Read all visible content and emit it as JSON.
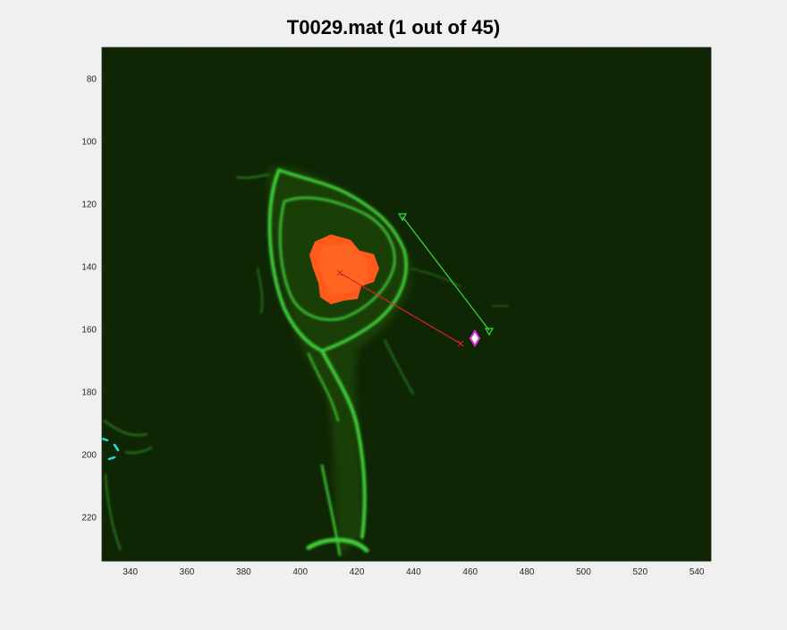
{
  "title": "T0029.mat (1 out of 45)",
  "x_axis": {
    "range": [
      330,
      545
    ],
    "ticks": [
      340,
      360,
      380,
      400,
      420,
      440,
      460,
      480,
      500,
      520,
      540
    ]
  },
  "y_axis": {
    "range": [
      70,
      234
    ],
    "reversed": true,
    "ticks": [
      80,
      100,
      120,
      140,
      160,
      180,
      200,
      220
    ]
  },
  "colors": {
    "background": "#0f2604",
    "cell_outline": "#3fcf3a",
    "nucleus": "#ff5a1a",
    "red_track": "#e02020",
    "green_track": "#30e040",
    "marker_fill": "#ffffff",
    "marker_edge": "#e030e0",
    "cyan_spots": "#20e0e0"
  },
  "annotations": {
    "red_line": {
      "start": [
        414,
        141.5
      ],
      "end": [
        457,
        164.5
      ],
      "end_marker": "x-marker",
      "start_marker": "x-marker"
    },
    "green_line": {
      "start": [
        436,
        123.5
      ],
      "end": [
        467,
        160
      ],
      "marker": "triangle-down"
    },
    "diamond_marker": {
      "position": [
        462.5,
        162.5
      ],
      "marker": "diamond"
    }
  },
  "nucleus_center": [
    414,
    141
  ]
}
